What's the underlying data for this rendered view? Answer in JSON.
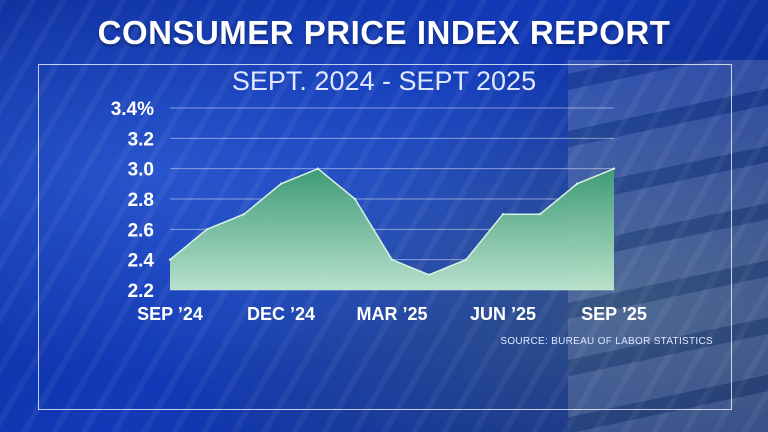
{
  "header": {
    "title": "CONSUMER PRICE INDEX REPORT",
    "subtitle": "SEPT. 2024 - SEPT 2025"
  },
  "footer": {
    "source": "SOURCE: BUREAU OF LABOR STATISTICS"
  },
  "chart_data": {
    "type": "area",
    "title": "CONSUMER PRICE INDEX REPORT",
    "subtitle": "SEPT. 2024 - SEPT 2025",
    "x": [
      "Sep 2024",
      "Oct 2024",
      "Nov 2024",
      "Dec 2024",
      "Jan 2025",
      "Feb 2025",
      "Mar 2025",
      "Apr 2025",
      "May 2025",
      "Jun 2025",
      "Jul 2025",
      "Aug 2025",
      "Sep 2025"
    ],
    "x_tick_labels": [
      "SEP ’24",
      "DEC ’24",
      "MAR ’25",
      "JUN ’25",
      "SEP ’25"
    ],
    "x_tick_index": [
      0,
      3,
      6,
      9,
      12
    ],
    "values": [
      2.4,
      2.6,
      2.7,
      2.9,
      3.0,
      2.8,
      2.4,
      2.3,
      2.4,
      2.7,
      2.7,
      2.9,
      3.0
    ],
    "y_ticks": [
      "2.2",
      "2.4",
      "2.6",
      "2.8",
      "3.0",
      "3.2",
      "3.4%"
    ],
    "y_tick_values": [
      2.2,
      2.4,
      2.6,
      2.8,
      3.0,
      3.2,
      3.4
    ],
    "ylim": [
      2.2,
      3.4
    ],
    "grid": true,
    "colors": {
      "fill_top": "#3f9e73",
      "fill_bottom": "#bfe8cf",
      "line": "#d8f2e2",
      "grid": "#ffffff"
    }
  }
}
